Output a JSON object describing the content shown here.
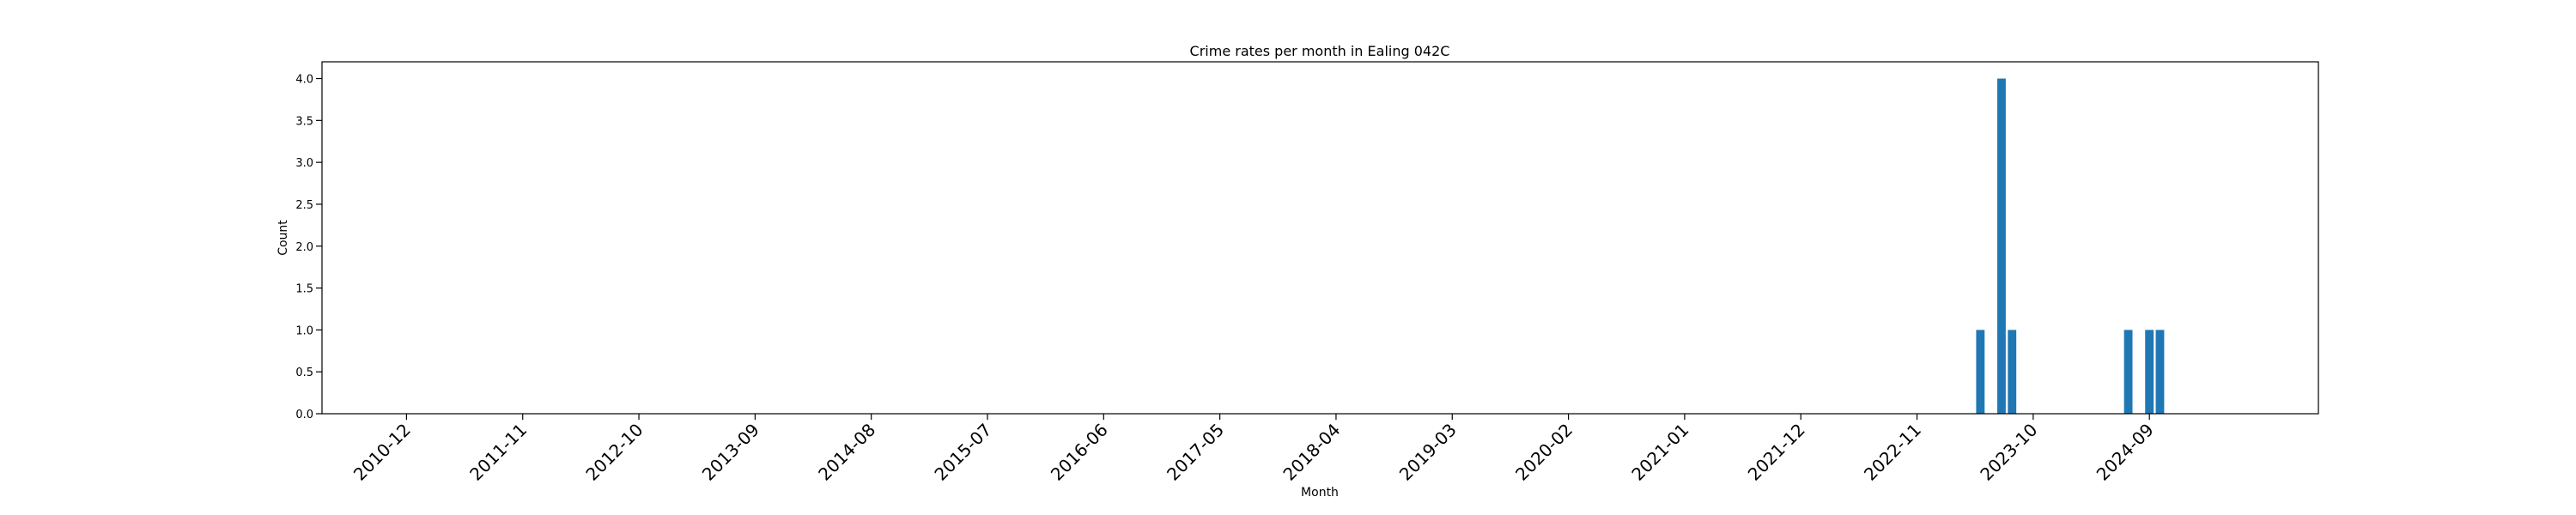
{
  "chart_data": {
    "type": "bar",
    "title": "Crime rates per month in Ealing 042C",
    "xlabel": "Month",
    "ylabel": "Count",
    "ylim": [
      0,
      4.2
    ],
    "yticks": [
      "0.0",
      "0.5",
      "1.0",
      "1.5",
      "2.0",
      "2.5",
      "3.0",
      "3.5",
      "4.0"
    ],
    "xticks": [
      "2010-12",
      "2011-11",
      "2012-10",
      "2013-09",
      "2014-08",
      "2015-07",
      "2016-06",
      "2017-05",
      "2018-04",
      "2019-03",
      "2020-02",
      "2021-01",
      "2021-12",
      "2022-11",
      "2023-10",
      "2024-09"
    ],
    "x_range": [
      "2010-04",
      "2026-01"
    ],
    "grid": false,
    "bar_color": "#1f77b4",
    "points": [
      {
        "month": "2023-05",
        "value": 1
      },
      {
        "month": "2023-07",
        "value": 4
      },
      {
        "month": "2023-08",
        "value": 1
      },
      {
        "month": "2024-07",
        "value": 1
      },
      {
        "month": "2024-09",
        "value": 1
      },
      {
        "month": "2024-10",
        "value": 1
      }
    ]
  }
}
